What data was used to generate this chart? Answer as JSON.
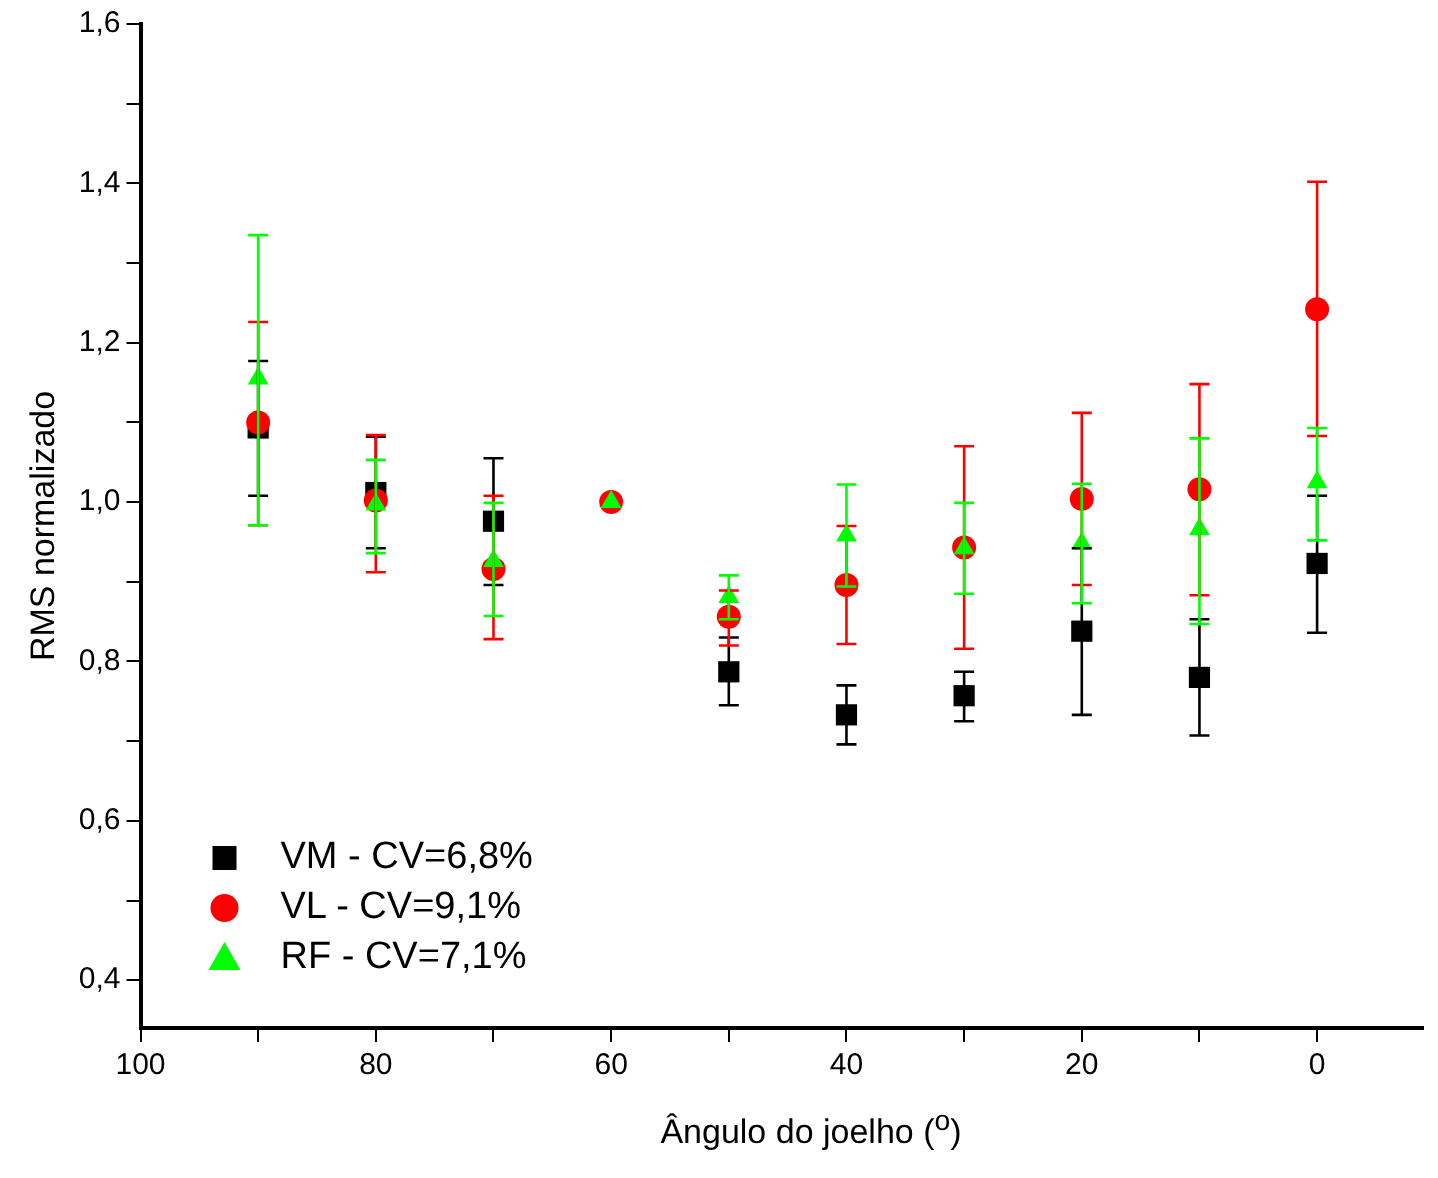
{
  "chart_data": {
    "type": "scatter",
    "xlabel": "Ângulo do joelho ($^{o}$)",
    "ylabel": "RMS normalizado",
    "x": [
      90,
      80,
      70,
      60,
      50,
      40,
      30,
      20,
      10,
      0
    ],
    "series": [
      {
        "name": "VM - CV=6,8%",
        "color": "#000000",
        "marker": "square",
        "values": [
          1.093,
          1.012,
          0.976,
          null,
          0.787,
          0.733,
          0.757,
          0.838,
          0.78,
          0.923
        ],
        "errors": [
          [
            1.008,
            1.177
          ],
          [
            0.942,
            1.082
          ],
          [
            0.896,
            1.055
          ],
          null,
          [
            0.745,
            0.83
          ],
          [
            0.696,
            0.77
          ],
          [
            0.725,
            0.787
          ],
          [
            0.733,
            0.942
          ],
          [
            0.707,
            0.853
          ],
          [
            0.836,
            1.008
          ]
        ]
      },
      {
        "name": "VL - CV=9,1%",
        "color": "#ff0000",
        "marker": "circle",
        "values": [
          1.1,
          1.002,
          0.916,
          1.0,
          0.856,
          0.896,
          0.943,
          1.004,
          1.016,
          1.242
        ],
        "errors": [
          [
            0.971,
            1.226
          ],
          [
            0.912,
            1.084
          ],
          [
            0.828,
            1.008
          ],
          null,
          [
            0.82,
            0.889
          ],
          [
            0.822,
            0.97
          ],
          [
            0.816,
            1.07
          ],
          [
            0.896,
            1.112
          ],
          [
            0.883,
            1.148
          ],
          [
            1.083,
            1.402
          ]
        ]
      },
      {
        "name": "RF - CV=7,1%",
        "color": "#00ff00",
        "marker": "triangle",
        "values": [
          1.155,
          0.997,
          0.926,
          1.0,
          0.881,
          0.958,
          0.942,
          0.948,
          0.966,
          1.025
        ],
        "errors": [
          [
            0.971,
            1.335
          ],
          [
            0.936,
            1.053
          ],
          [
            0.857,
            0.999
          ],
          null,
          [
            0.853,
            0.908
          ],
          [
            0.894,
            1.022
          ],
          [
            0.885,
            0.999
          ],
          [
            0.873,
            1.023
          ],
          [
            0.847,
            1.08
          ],
          [
            0.952,
            1.093
          ]
        ]
      }
    ],
    "xlim": [
      100,
      -9
    ],
    "xticks": [
      100,
      {
        "value": 90,
        "label": null
      },
      80,
      {
        "value": 70,
        "label": null
      },
      60,
      {
        "value": 50,
        "label": null
      },
      40,
      {
        "value": 30,
        "label": null
      },
      20,
      {
        "value": 10,
        "label": null
      },
      0
    ],
    "ylim": [
      0.34,
      1.6
    ],
    "yticks": [
      {
        "value": 0.4,
        "label": "0,4"
      },
      {
        "value": 0.5,
        "label": null
      },
      {
        "value": 0.6,
        "label": "0,6"
      },
      {
        "value": 0.7,
        "label": null
      },
      {
        "value": 0.8,
        "label": "0,8"
      },
      {
        "value": 0.9,
        "label": null
      },
      {
        "value": 1.0,
        "label": "1,0"
      },
      {
        "value": 1.1,
        "label": null
      },
      {
        "value": 1.2,
        "label": "1,2"
      },
      {
        "value": 1.3,
        "label": null
      },
      {
        "value": 1.4,
        "label": "1,4"
      },
      {
        "value": 1.5,
        "label": null
      },
      {
        "value": 1.6,
        "label": "1,6"
      }
    ],
    "grid": false,
    "legend": "bottom left"
  }
}
